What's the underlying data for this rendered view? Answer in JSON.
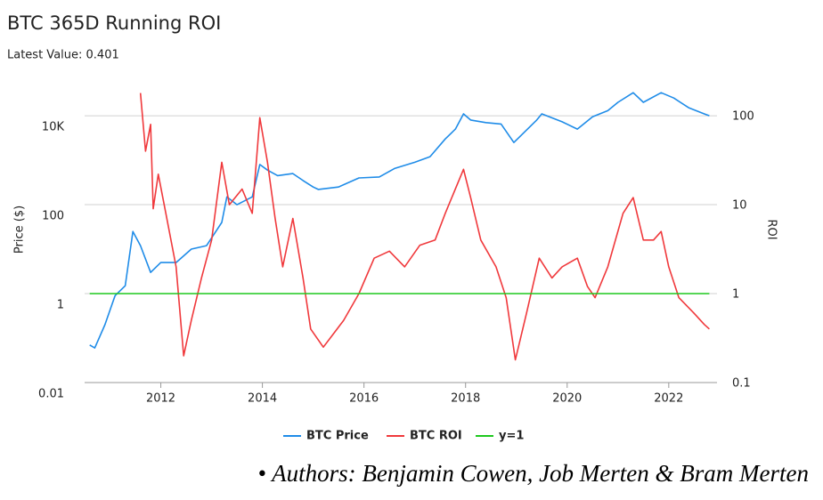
{
  "chart_data": {
    "type": "line",
    "title": "BTC 365D Running ROI",
    "subtitle": "Latest Value: 0.401",
    "ylabel": "Price ($)",
    "y2label": "ROI",
    "ylog": true,
    "y2log": true,
    "grid": true,
    "legend": "bottom",
    "xlim": [
      2010.5,
      2022.95
    ],
    "xticks": [
      2012,
      2014,
      2016,
      2018,
      2020,
      2022
    ],
    "ylim": [
      0.01,
      40000
    ],
    "yticks": [
      0.01,
      1,
      100,
      {
        "value": 10000,
        "label": "10K"
      }
    ],
    "y2lim": [
      0.1,
      200
    ],
    "y2ticks": [
      0.1,
      1,
      10,
      100
    ],
    "series": [
      {
        "name": "BTC Price",
        "color": "#1f8ce8",
        "x": [
          2010.6,
          2010.7,
          2010.9,
          2011.1,
          2011.3,
          2011.45,
          2011.6,
          2011.8,
          2012.0,
          2012.3,
          2012.6,
          2012.9,
          2013.2,
          2013.3,
          2013.5,
          2013.8,
          2013.95,
          2014.1,
          2014.3,
          2014.6,
          2014.8,
          2015.0,
          2015.1,
          2015.5,
          2015.9,
          2016.3,
          2016.6,
          2017.0,
          2017.3,
          2017.6,
          2017.8,
          2017.96,
          2018.1,
          2018.4,
          2018.7,
          2018.95,
          2019.4,
          2019.5,
          2019.9,
          2020.2,
          2020.5,
          2020.8,
          2021.0,
          2021.3,
          2021.5,
          2021.85,
          2022.1,
          2022.4,
          2022.7,
          2022.8
        ],
        "values": [
          0.07,
          0.06,
          0.2,
          0.9,
          1.5,
          25,
          12,
          3,
          5,
          5,
          10,
          12,
          40,
          150,
          100,
          150,
          800,
          600,
          450,
          500,
          350,
          250,
          220,
          250,
          400,
          420,
          650,
          900,
          1200,
          3000,
          5000,
          11000,
          8000,
          7000,
          6500,
          2500,
          8000,
          11000,
          7300,
          5000,
          9500,
          13000,
          20000,
          33000,
          20000,
          33000,
          25000,
          15000,
          11000,
          10000
        ]
      },
      {
        "name": "BTC ROI",
        "color": "#f0393c",
        "axis": "y2",
        "x": [
          2011.6,
          2011.7,
          2011.8,
          2011.85,
          2011.95,
          2012.1,
          2012.3,
          2012.45,
          2012.6,
          2012.8,
          2013.0,
          2013.2,
          2013.35,
          2013.6,
          2013.8,
          2013.95,
          2014.1,
          2014.25,
          2014.4,
          2014.6,
          2014.8,
          2014.95,
          2015.2,
          2015.6,
          2015.9,
          2016.2,
          2016.5,
          2016.8,
          2017.1,
          2017.4,
          2017.6,
          2017.96,
          2018.1,
          2018.3,
          2018.6,
          2018.8,
          2018.98,
          2019.2,
          2019.45,
          2019.7,
          2019.9,
          2020.2,
          2020.4,
          2020.55,
          2020.8,
          2021.1,
          2021.3,
          2021.5,
          2021.7,
          2021.85,
          2022.0,
          2022.2,
          2022.5,
          2022.7,
          2022.8
        ],
        "values": [
          180,
          40,
          80,
          9,
          22,
          8,
          2,
          0.2,
          0.5,
          1.5,
          4,
          30,
          10,
          15,
          8,
          95,
          30,
          7,
          2,
          7,
          1.5,
          0.4,
          0.25,
          0.5,
          1,
          2.5,
          3,
          2,
          3.5,
          4,
          8,
          25,
          12,
          4,
          2,
          0.9,
          0.18,
          0.6,
          2.5,
          1.5,
          2,
          2.5,
          1.2,
          0.9,
          2,
          8,
          12,
          4,
          4,
          5,
          2,
          0.9,
          0.6,
          0.45,
          0.4
        ]
      },
      {
        "name": "y=1",
        "color": "#1ec81e",
        "axis": "y2",
        "x": [
          2010.6,
          2022.8
        ],
        "values": [
          1,
          1
        ]
      }
    ]
  },
  "footer": "• Authors: Benjamin Cowen, Job Merten & Bram Merten"
}
